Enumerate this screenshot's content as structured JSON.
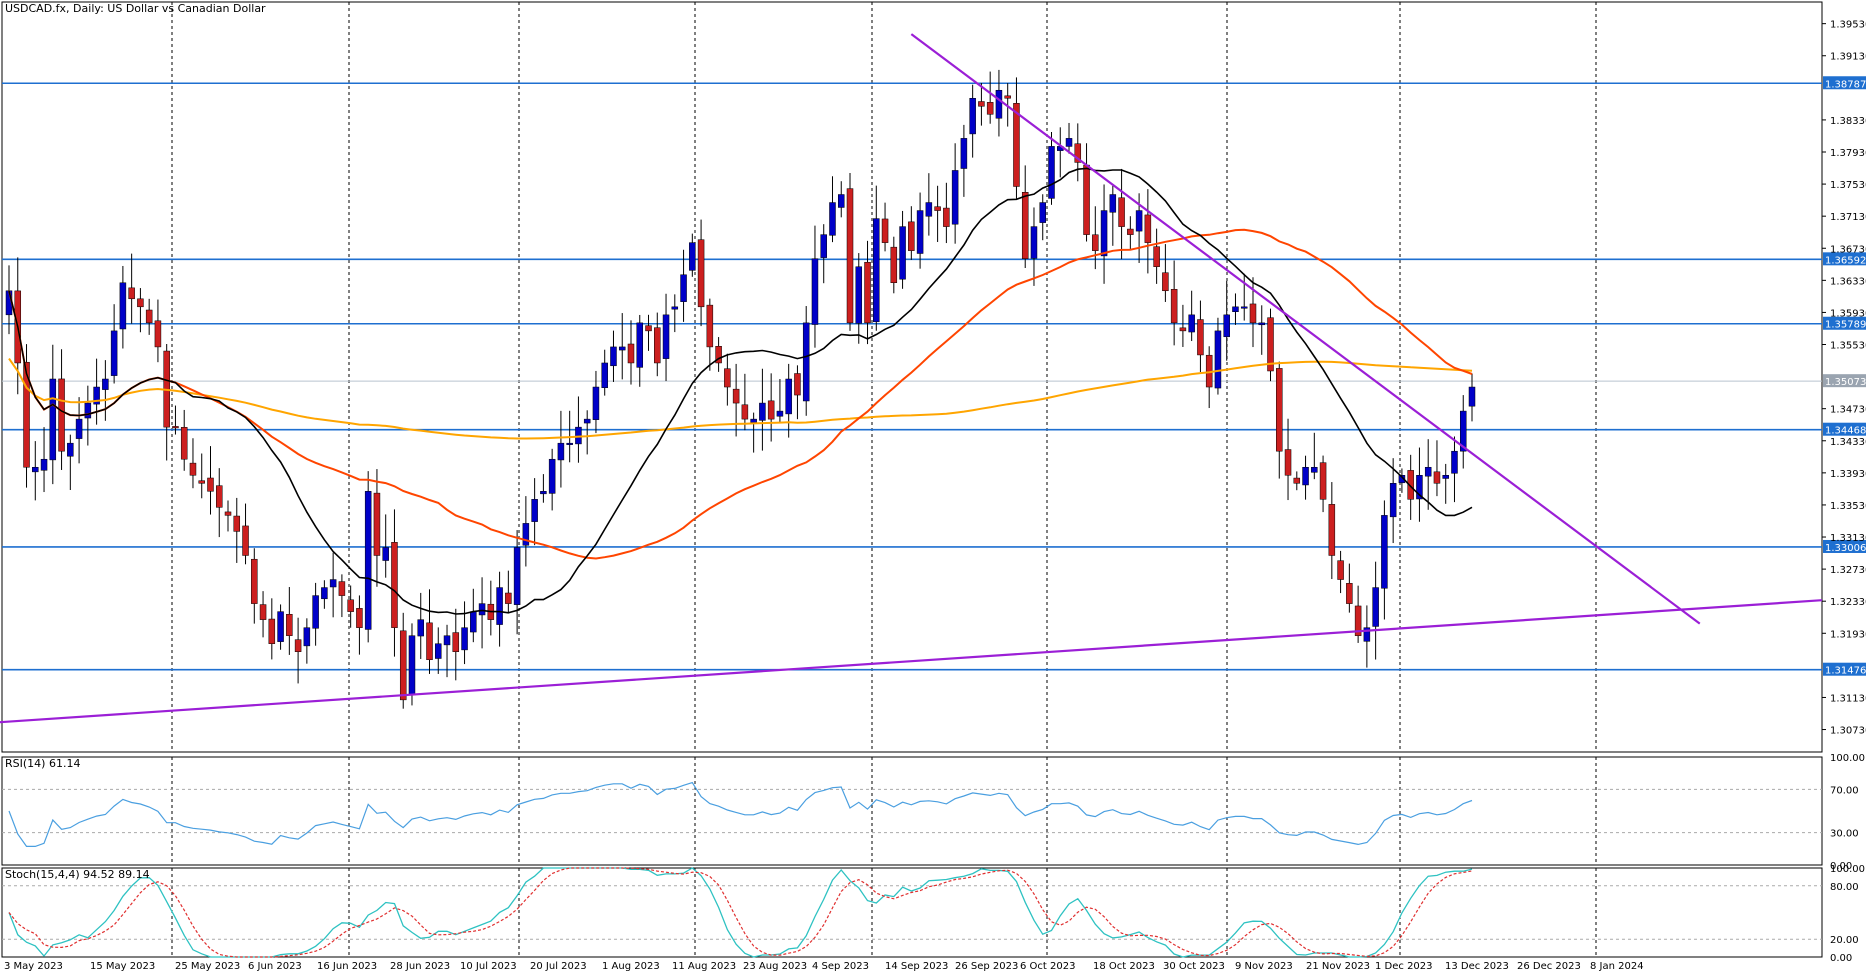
{
  "chart_data": {
    "type": "candlestick",
    "title": "USDCAD.fx, Daily:  US Dollar vs Canadian Dollar",
    "x_tick_labels": [
      "3 May 2023",
      "15 May 2023",
      "25 May 2023",
      "6 Jun 2023",
      "16 Jun 2023",
      "28 Jun 2023",
      "10 Jul 2023",
      "20 Jul 2023",
      "1 Aug 2023",
      "11 Aug 2023",
      "23 Aug 2023",
      "4 Sep 2023",
      "14 Sep 2023",
      "26 Sep 2023",
      "6 Oct 2023",
      "18 Oct 2023",
      "30 Oct 2023",
      "9 Nov 2023",
      "21 Nov 2023",
      "1 Dec 2023",
      "13 Dec 2023",
      "26 Dec 2023",
      "8 Jan 2024"
    ],
    "y_tick_labels": [
      "1.39530",
      "1.39130",
      "1.38330",
      "1.37930",
      "1.37530",
      "1.37130",
      "1.36730",
      "1.36330",
      "1.35930",
      "1.35530",
      "1.34730",
      "1.34330",
      "1.33930",
      "1.33530",
      "1.33130",
      "1.32730",
      "1.32330",
      "1.31930",
      "1.31130",
      "1.30730"
    ],
    "ylim": [
      1.3045,
      1.398
    ],
    "horizontal_levels": [
      {
        "label": "1.38787",
        "value": 1.38787
      },
      {
        "label": "1.36592",
        "value": 1.36592
      },
      {
        "label": "1.35789",
        "value": 1.35789
      },
      {
        "label": "1.35073",
        "value": 1.35073
      },
      {
        "label": "1.34468",
        "value": 1.34468
      },
      {
        "label": "1.33006",
        "value": 1.33006
      },
      {
        "label": "1.31476",
        "value": 1.31476
      }
    ],
    "close_series": [
      1.362,
      1.353,
      1.34,
      1.34,
      1.341,
      1.351,
      1.342,
      1.343,
      1.346,
      1.348,
      1.35,
      1.351,
      1.357,
      1.363,
      1.361,
      1.36,
      1.358,
      1.355,
      1.345,
      1.345,
      1.341,
      1.339,
      1.338,
      1.337,
      1.335,
      1.334,
      1.332,
      1.329,
      1.323,
      1.321,
      1.318,
      1.322,
      1.319,
      1.317,
      1.32,
      1.324,
      1.325,
      1.326,
      1.324,
      1.322,
      1.32,
      1.337,
      1.329,
      1.33,
      1.32,
      1.311,
      1.319,
      1.321,
      1.316,
      1.318,
      1.319,
      1.317,
      1.32,
      1.322,
      1.323,
      1.321,
      1.325,
      1.323,
      1.33,
      1.333,
      1.336,
      1.337,
      1.341,
      1.343,
      1.343,
      1.345,
      1.346,
      1.35,
      1.353,
      1.355,
      1.355,
      1.353,
      1.358,
      1.357,
      1.353,
      1.359,
      1.36,
      1.364,
      1.368,
      1.36,
      1.355,
      1.353,
      1.35,
      1.348,
      1.346,
      1.346,
      1.348,
      1.346,
      1.347,
      1.351,
      1.349,
      1.358,
      1.366,
      1.369,
      1.373,
      1.374,
      1.358,
      1.365,
      1.358,
      1.371,
      1.368,
      1.363,
      1.37,
      1.367,
      1.372,
      1.373,
      1.372,
      1.37,
      1.377,
      1.381,
      1.386,
      1.385,
      1.384,
      1.387,
      1.386,
      1.375,
      1.366,
      1.37,
      1.373,
      1.38,
      1.38,
      1.381,
      1.378,
      1.369,
      1.367,
      1.372,
      1.374,
      1.37,
      1.369,
      1.372,
      1.368,
      1.365,
      1.362,
      1.358,
      1.357,
      1.359,
      1.354,
      1.35,
      1.357,
      1.359,
      1.36,
      1.36,
      1.358,
      1.358,
      1.352,
      1.342,
      1.339,
      1.338,
      1.34,
      1.34,
      1.336,
      1.329,
      1.326,
      1.323,
      1.319,
      1.32,
      1.325,
      1.334,
      1.338,
      1.339,
      1.336,
      1.339,
      1.34,
      1.338,
      1.339,
      1.342,
      1.347,
      1.35
    ],
    "indicators": {
      "ma_black": {
        "color": "#000000"
      },
      "ma_red": {
        "color": "#ff4500"
      },
      "ma_orange": {
        "color": "#ffa500"
      }
    },
    "panels": [
      {
        "label": "RSI(14) 61.14",
        "levels": [
          "100.00",
          "70.00",
          "30.00",
          "0.00"
        ]
      },
      {
        "label": "Stoch(15,4,4) 94.52 89.14",
        "levels": [
          "100.00",
          "80.00",
          "20.00",
          "0.00"
        ]
      }
    ],
    "price_marker": {
      "label": "1.35073"
    },
    "colors": {
      "bull": "#0000c8",
      "bear": "#cc1f1f",
      "level": "#1e6fd0",
      "trendline": "#9b1fd6",
      "rsi": "#4a9fe0",
      "stoch_main": "#2ec2c2",
      "stoch_signal": "#e03030"
    }
  }
}
